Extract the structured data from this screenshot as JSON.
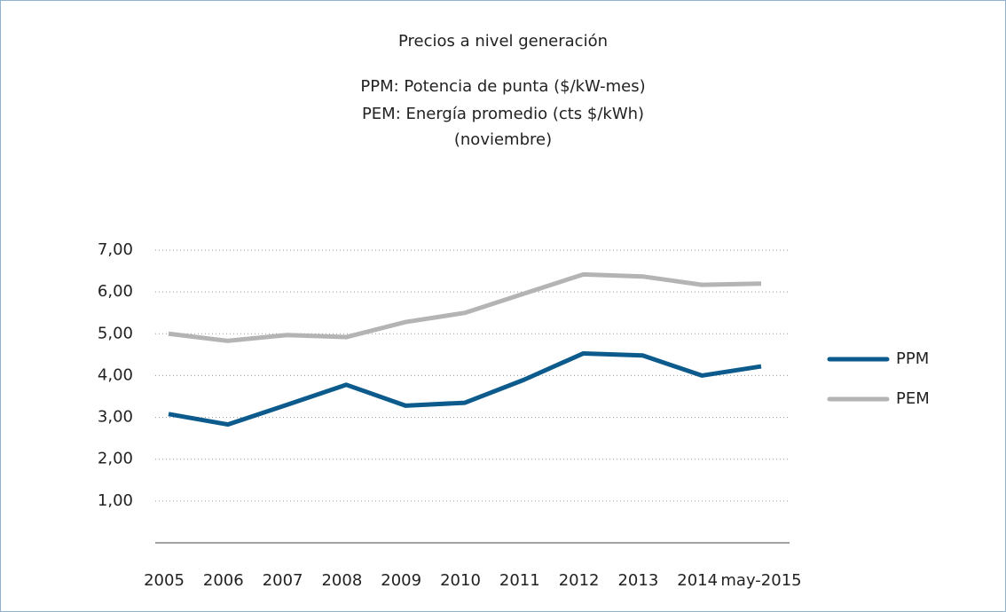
{
  "chart_data": {
    "type": "line",
    "title": "Precios a nivel generación",
    "subtitle": [
      "PPM: Potencia de punta ($/kW-mes)",
      "PEM: Energía promedio (cts $/kWh)",
      "(noviembre)"
    ],
    "categories": [
      "2005",
      "2006",
      "2007",
      "2008",
      "2009",
      "2010",
      "2011",
      "2012",
      "2013",
      "2014",
      "may-2015"
    ],
    "series": [
      {
        "name": "PPM",
        "color": "#0d5b8c",
        "values": [
          3.08,
          2.83,
          3.3,
          3.78,
          3.28,
          3.35,
          3.9,
          4.53,
          4.48,
          4.0,
          4.22
        ]
      },
      {
        "name": "PEM",
        "color": "#b4b4b4",
        "values": [
          5.0,
          4.83,
          4.97,
          4.92,
          5.28,
          5.5,
          5.96,
          6.42,
          6.37,
          6.17,
          6.2
        ]
      }
    ],
    "ylim": [
      0,
      7
    ],
    "yticks": [
      {
        "value": 1,
        "label": "1,00"
      },
      {
        "value": 2,
        "label": "2,00"
      },
      {
        "value": 3,
        "label": "3,00"
      },
      {
        "value": 4,
        "label": "4,00"
      },
      {
        "value": 5,
        "label": "5,00"
      },
      {
        "value": 6,
        "label": "6,00"
      },
      {
        "value": 7,
        "label": "7,00"
      }
    ],
    "grid": true,
    "legend": "right"
  }
}
